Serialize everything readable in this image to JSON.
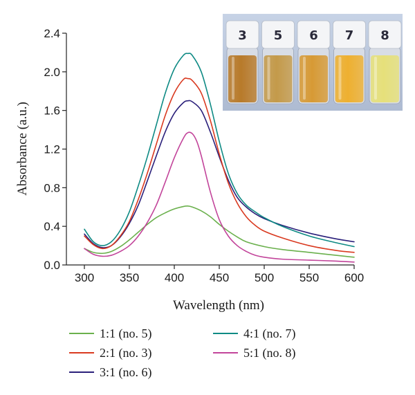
{
  "chart_data": {
    "type": "line",
    "xlabel": "Wavelength (nm)",
    "ylabel": "Absorbance (a.u.)",
    "xlim": [
      280,
      600
    ],
    "ylim": [
      0.0,
      2.4
    ],
    "xticks": [
      300,
      350,
      400,
      450,
      500,
      550,
      600
    ],
    "yticks": [
      0.0,
      0.4,
      0.8,
      1.2,
      1.6,
      2.0,
      2.4
    ],
    "xtick_labels": [
      "300",
      "350",
      "400",
      "450",
      "500",
      "550",
      "600"
    ],
    "ytick_labels": [
      "0.0",
      "0.4",
      "0.8",
      "1.2",
      "1.6",
      "2.0",
      "2.4"
    ],
    "grid": false,
    "legend_position": "bottom",
    "series": [
      {
        "name": "1:1 (no. 5)",
        "color": "#6ab04c",
        "x": [
          300,
          310,
          320,
          330,
          340,
          350,
          360,
          370,
          380,
          390,
          400,
          410,
          415,
          420,
          430,
          440,
          450,
          460,
          470,
          480,
          500,
          520,
          550,
          580,
          600
        ],
        "y": [
          0.17,
          0.13,
          0.12,
          0.14,
          0.19,
          0.26,
          0.34,
          0.42,
          0.49,
          0.54,
          0.58,
          0.605,
          0.61,
          0.6,
          0.56,
          0.5,
          0.42,
          0.35,
          0.29,
          0.24,
          0.19,
          0.16,
          0.13,
          0.1,
          0.08
        ]
      },
      {
        "name": "2:1 (no. 3)",
        "color": "#d9391f",
        "x": [
          300,
          310,
          320,
          330,
          340,
          350,
          360,
          370,
          380,
          390,
          400,
          410,
          415,
          420,
          430,
          440,
          450,
          460,
          470,
          480,
          490,
          500,
          520,
          550,
          580,
          600
        ],
        "y": [
          0.3,
          0.21,
          0.17,
          0.2,
          0.3,
          0.45,
          0.68,
          0.95,
          1.25,
          1.55,
          1.78,
          1.92,
          1.93,
          1.91,
          1.78,
          1.5,
          1.15,
          0.85,
          0.64,
          0.5,
          0.41,
          0.35,
          0.28,
          0.2,
          0.15,
          0.13
        ]
      },
      {
        "name": "3:1 (no. 6)",
        "color": "#2a1f7a",
        "x": [
          300,
          310,
          320,
          330,
          340,
          350,
          360,
          370,
          380,
          390,
          400,
          410,
          415,
          420,
          430,
          440,
          450,
          460,
          470,
          480,
          490,
          500,
          520,
          550,
          580,
          600
        ],
        "y": [
          0.32,
          0.22,
          0.18,
          0.2,
          0.29,
          0.43,
          0.62,
          0.87,
          1.13,
          1.38,
          1.57,
          1.68,
          1.7,
          1.69,
          1.6,
          1.38,
          1.12,
          0.88,
          0.7,
          0.6,
          0.53,
          0.48,
          0.41,
          0.33,
          0.27,
          0.24
        ]
      },
      {
        "name": "4:1 (no. 7)",
        "color": "#0e8a84",
        "x": [
          300,
          310,
          320,
          330,
          340,
          350,
          360,
          370,
          380,
          390,
          400,
          410,
          415,
          420,
          430,
          440,
          450,
          460,
          470,
          480,
          490,
          500,
          520,
          550,
          580,
          600
        ],
        "y": [
          0.37,
          0.24,
          0.2,
          0.24,
          0.36,
          0.55,
          0.82,
          1.12,
          1.45,
          1.78,
          2.03,
          2.17,
          2.19,
          2.17,
          2.0,
          1.67,
          1.28,
          0.95,
          0.74,
          0.62,
          0.55,
          0.49,
          0.4,
          0.3,
          0.23,
          0.19
        ]
      },
      {
        "name": "5:1 (no. 8)",
        "color": "#c2449a",
        "x": [
          300,
          310,
          320,
          330,
          340,
          350,
          360,
          370,
          380,
          390,
          400,
          410,
          415,
          420,
          425,
          430,
          440,
          450,
          460,
          470,
          480,
          490,
          500,
          520,
          550,
          580,
          600
        ],
        "y": [
          0.17,
          0.11,
          0.09,
          0.1,
          0.14,
          0.2,
          0.3,
          0.44,
          0.62,
          0.86,
          1.11,
          1.31,
          1.37,
          1.36,
          1.28,
          1.13,
          0.76,
          0.47,
          0.3,
          0.2,
          0.14,
          0.1,
          0.08,
          0.06,
          0.05,
          0.04,
          0.03
        ]
      }
    ],
    "inset_photo": {
      "vial_labels": [
        "3",
        "5",
        "6",
        "7",
        "8"
      ],
      "vial_colors": [
        "#b87a2a",
        "#c49a4a",
        "#d79a35",
        "#eeb030",
        "#e6e07a"
      ]
    }
  }
}
